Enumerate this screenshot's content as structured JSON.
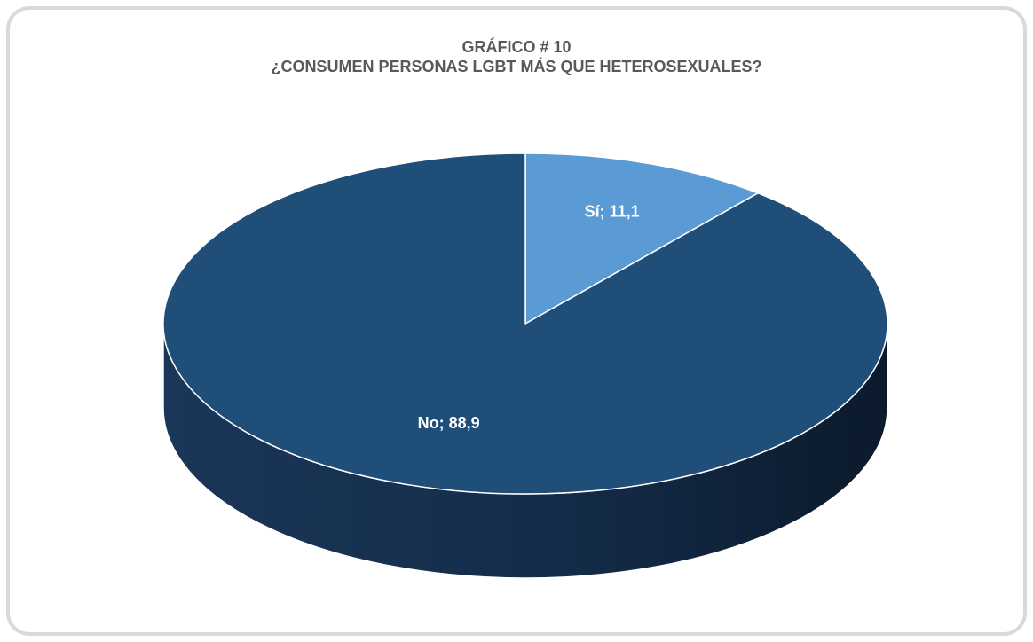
{
  "chart_data": {
    "type": "pie",
    "title": "GRÁFICO # 10",
    "subtitle": "¿CONSUMEN PERSONAS LGBT MÁS QUE HETEROSEXUALES?",
    "three_d": true,
    "legend": "none",
    "slices": [
      {
        "label": "Sí",
        "value": 11.1,
        "data_label": "Sí; 11,1",
        "color": "#5b9bd5"
      },
      {
        "label": "No",
        "value": 88.9,
        "data_label": "No; 88,9",
        "color": "#1f4e79"
      }
    ]
  },
  "colors": {
    "side_dark": "#0d1d31",
    "side_mid": "#1a3658",
    "border": "#d9d9d9",
    "title_text": "#595959"
  }
}
